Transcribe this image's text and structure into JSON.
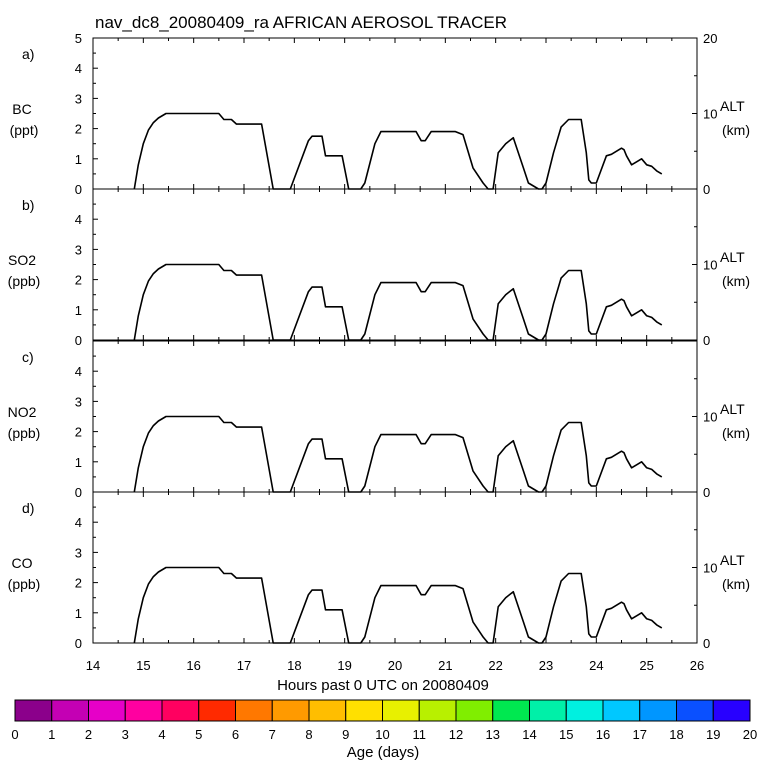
{
  "title": "nav_dc8_20080409_ra AFRICAN AEROSOL TRACER",
  "xlabel": "Hours past 0 UTC on 20080409",
  "colorbar": {
    "label": "Age (days)",
    "ticks": [
      "0",
      "1",
      "2",
      "3",
      "4",
      "5",
      "6",
      "7",
      "8",
      "9",
      "10",
      "11",
      "12",
      "13",
      "14",
      "15",
      "16",
      "17",
      "18",
      "19",
      "20"
    ],
    "colors": [
      "#8b008b",
      "#c400b4",
      "#e600c8",
      "#ff00a0",
      "#ff0060",
      "#ff2a00",
      "#ff7800",
      "#ff9a00",
      "#ffbe00",
      "#ffe000",
      "#e8f000",
      "#b8f000",
      "#80ee00",
      "#00e850",
      "#00f0a8",
      "#00f0e0",
      "#00c8ff",
      "#0096ff",
      "#0a50ff",
      "#2800ff",
      "#7a00ff"
    ]
  },
  "chart_data": [
    {
      "type": "line",
      "panel_letter": "a)",
      "ylabel_top": "BC",
      "ylabel_units": "(ppt)",
      "right_label": "ALT",
      "right_units": "(km)",
      "xlim": [
        14,
        26
      ],
      "xticks": [
        "14",
        "15",
        "16",
        "17",
        "18",
        "19",
        "20",
        "21",
        "22",
        "23",
        "24",
        "25",
        "26"
      ],
      "ylim": [
        0,
        5
      ],
      "yticks": [
        "0",
        "1",
        "2",
        "3",
        "4",
        "5"
      ],
      "y2lim": [
        0,
        20
      ],
      "y2ticks": [
        "0",
        "10",
        "20"
      ],
      "series": [
        {
          "x": [
            14.82,
            14.9,
            15.0,
            15.1,
            15.2,
            15.3,
            15.45,
            15.6,
            16.0,
            16.5,
            16.6,
            16.75,
            16.85,
            17.35,
            17.58,
            17.92,
            18.28,
            18.35,
            18.45,
            18.55,
            18.62,
            18.72,
            18.95,
            19.08,
            19.32,
            19.4,
            19.6,
            19.72,
            20.3,
            20.42,
            20.52,
            20.6,
            20.72,
            21.2,
            21.35,
            21.55,
            21.75,
            21.85,
            21.95,
            22.05,
            22.2,
            22.35,
            22.55,
            22.65,
            22.85,
            22.92,
            23.0,
            23.15,
            23.3,
            23.45,
            23.7,
            23.8,
            23.85,
            23.9,
            24.0,
            24.2,
            24.3,
            24.45,
            24.5,
            24.55,
            24.6,
            24.7,
            24.9,
            25.0,
            25.1,
            25.2,
            25.3
          ],
          "y": [
            0,
            0.8,
            1.5,
            1.95,
            2.2,
            2.35,
            2.5,
            2.5,
            2.5,
            2.5,
            2.3,
            2.3,
            2.15,
            2.15,
            0,
            0,
            1.6,
            1.75,
            1.75,
            1.75,
            1.1,
            1.1,
            1.1,
            0,
            0,
            0.2,
            1.5,
            1.9,
            1.9,
            1.9,
            1.6,
            1.6,
            1.9,
            1.9,
            1.8,
            0.7,
            0.2,
            0,
            0,
            1.2,
            1.5,
            1.7,
            0.7,
            0.2,
            0,
            0,
            0.2,
            1.2,
            2.05,
            2.3,
            2.3,
            1.2,
            0.3,
            0.2,
            0.2,
            1.1,
            1.15,
            1.3,
            1.35,
            1.3,
            1.1,
            0.8,
            1,
            0.8,
            0.75,
            0.6,
            0.5
          ]
        }
      ]
    },
    {
      "type": "line",
      "panel_letter": "b)",
      "ylabel_top": "SO2",
      "ylabel_units": "(ppb)",
      "right_label": "ALT",
      "right_units": "(km)",
      "xlim": [
        14,
        26
      ],
      "ylim": [
        0,
        5
      ],
      "yticks": [
        "0",
        "1",
        "2",
        "3",
        "4"
      ],
      "y2lim": [
        0,
        20
      ],
      "y2ticks": [
        "0",
        "10"
      ],
      "series": [
        {
          "x": [
            14.82,
            14.9,
            15.0,
            15.1,
            15.2,
            15.3,
            15.45,
            15.6,
            16.0,
            16.5,
            16.6,
            16.75,
            16.85,
            17.35,
            17.58,
            17.92,
            18.28,
            18.35,
            18.45,
            18.55,
            18.62,
            18.72,
            18.95,
            19.08,
            19.32,
            19.4,
            19.6,
            19.72,
            20.3,
            20.42,
            20.52,
            20.6,
            20.72,
            21.2,
            21.35,
            21.55,
            21.75,
            21.85,
            21.95,
            22.05,
            22.2,
            22.35,
            22.55,
            22.65,
            22.85,
            22.92,
            23.0,
            23.15,
            23.3,
            23.45,
            23.7,
            23.8,
            23.85,
            23.9,
            24.0,
            24.2,
            24.3,
            24.45,
            24.5,
            24.55,
            24.6,
            24.7,
            24.9,
            25.0,
            25.1,
            25.2,
            25.3
          ],
          "y": [
            0,
            0.8,
            1.5,
            1.95,
            2.2,
            2.35,
            2.5,
            2.5,
            2.5,
            2.5,
            2.3,
            2.3,
            2.15,
            2.15,
            0,
            0,
            1.6,
            1.75,
            1.75,
            1.75,
            1.1,
            1.1,
            1.1,
            0,
            0,
            0.2,
            1.5,
            1.9,
            1.9,
            1.9,
            1.6,
            1.6,
            1.9,
            1.9,
            1.8,
            0.7,
            0.2,
            0,
            0,
            1.2,
            1.5,
            1.7,
            0.7,
            0.2,
            0,
            0,
            0.2,
            1.2,
            2.05,
            2.3,
            2.3,
            1.2,
            0.3,
            0.2,
            0.2,
            1.1,
            1.15,
            1.3,
            1.35,
            1.3,
            1.1,
            0.8,
            1,
            0.8,
            0.75,
            0.6,
            0.5
          ]
        }
      ]
    },
    {
      "type": "line",
      "panel_letter": "c)",
      "ylabel_top": "NO2",
      "ylabel_units": "(ppb)",
      "right_label": "ALT",
      "right_units": "(km)",
      "xlim": [
        14,
        26
      ],
      "ylim": [
        0,
        5
      ],
      "yticks": [
        "0",
        "1",
        "2",
        "3",
        "4"
      ],
      "y2lim": [
        0,
        20
      ],
      "y2ticks": [
        "0",
        "10"
      ],
      "series": [
        {
          "x": [
            14.82,
            14.9,
            15.0,
            15.1,
            15.2,
            15.3,
            15.45,
            15.6,
            16.0,
            16.5,
            16.6,
            16.75,
            16.85,
            17.35,
            17.58,
            17.92,
            18.28,
            18.35,
            18.45,
            18.55,
            18.62,
            18.72,
            18.95,
            19.08,
            19.32,
            19.4,
            19.6,
            19.72,
            20.3,
            20.42,
            20.52,
            20.6,
            20.72,
            21.2,
            21.35,
            21.55,
            21.75,
            21.85,
            21.95,
            22.05,
            22.2,
            22.35,
            22.55,
            22.65,
            22.85,
            22.92,
            23.0,
            23.15,
            23.3,
            23.45,
            23.7,
            23.8,
            23.85,
            23.9,
            24.0,
            24.2,
            24.3,
            24.45,
            24.5,
            24.55,
            24.6,
            24.7,
            24.9,
            25.0,
            25.1,
            25.2,
            25.3
          ],
          "y": [
            0,
            0.8,
            1.5,
            1.95,
            2.2,
            2.35,
            2.5,
            2.5,
            2.5,
            2.5,
            2.3,
            2.3,
            2.15,
            2.15,
            0,
            0,
            1.6,
            1.75,
            1.75,
            1.75,
            1.1,
            1.1,
            1.1,
            0,
            0,
            0.2,
            1.5,
            1.9,
            1.9,
            1.9,
            1.6,
            1.6,
            1.9,
            1.9,
            1.8,
            0.7,
            0.2,
            0,
            0,
            1.2,
            1.5,
            1.7,
            0.7,
            0.2,
            0,
            0,
            0.2,
            1.2,
            2.05,
            2.3,
            2.3,
            1.2,
            0.3,
            0.2,
            0.2,
            1.1,
            1.15,
            1.3,
            1.35,
            1.3,
            1.1,
            0.8,
            1,
            0.8,
            0.75,
            0.6,
            0.5
          ]
        }
      ]
    },
    {
      "type": "line",
      "panel_letter": "d)",
      "ylabel_top": "CO",
      "ylabel_units": "(ppb)",
      "right_label": "ALT",
      "right_units": "(km)",
      "xlim": [
        14,
        26
      ],
      "ylim": [
        0,
        5
      ],
      "yticks": [
        "0",
        "1",
        "2",
        "3",
        "4"
      ],
      "y2lim": [
        0,
        20
      ],
      "y2ticks": [
        "0",
        "10"
      ],
      "series": [
        {
          "x": [
            14.82,
            14.9,
            15.0,
            15.1,
            15.2,
            15.3,
            15.45,
            15.6,
            16.0,
            16.5,
            16.6,
            16.75,
            16.85,
            17.35,
            17.58,
            17.92,
            18.28,
            18.35,
            18.45,
            18.55,
            18.62,
            18.72,
            18.95,
            19.08,
            19.32,
            19.4,
            19.6,
            19.72,
            20.3,
            20.42,
            20.52,
            20.6,
            20.72,
            21.2,
            21.35,
            21.55,
            21.75,
            21.85,
            21.95,
            22.05,
            22.2,
            22.35,
            22.55,
            22.65,
            22.85,
            22.92,
            23.0,
            23.15,
            23.3,
            23.45,
            23.7,
            23.8,
            23.85,
            23.9,
            24.0,
            24.2,
            24.3,
            24.45,
            24.5,
            24.55,
            24.6,
            24.7,
            24.9,
            25.0,
            25.1,
            25.2,
            25.3
          ],
          "y": [
            0,
            0.8,
            1.5,
            1.95,
            2.2,
            2.35,
            2.5,
            2.5,
            2.5,
            2.5,
            2.3,
            2.3,
            2.15,
            2.15,
            0,
            0,
            1.6,
            1.75,
            1.75,
            1.75,
            1.1,
            1.1,
            1.1,
            0,
            0,
            0.2,
            1.5,
            1.9,
            1.9,
            1.9,
            1.6,
            1.6,
            1.9,
            1.9,
            1.8,
            0.7,
            0.2,
            0,
            0,
            1.2,
            1.5,
            1.7,
            0.7,
            0.2,
            0,
            0,
            0.2,
            1.2,
            2.05,
            2.3,
            2.3,
            1.2,
            0.3,
            0.2,
            0.2,
            1.1,
            1.15,
            1.3,
            1.35,
            1.3,
            1.1,
            0.8,
            1,
            0.8,
            0.75,
            0.6,
            0.5
          ]
        }
      ]
    }
  ]
}
